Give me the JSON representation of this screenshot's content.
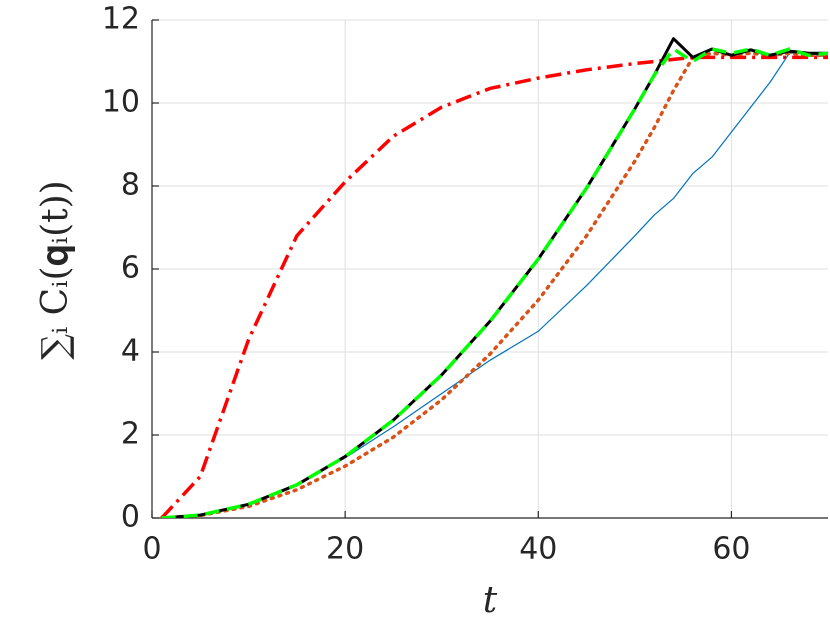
{
  "chart_data": {
    "type": "line",
    "x_label": "t",
    "y_label": "∑ᵢ Cᵢ(𝐪ᵢ(t))",
    "x": [
      1,
      5,
      10,
      15,
      20,
      25,
      30,
      35,
      40,
      45,
      50,
      52,
      54,
      56,
      58,
      60,
      62,
      64,
      66,
      68,
      70
    ],
    "series": [
      {
        "color": "#0072bd",
        "style": "solid",
        "width": 1.2,
        "values": [
          0,
          0.06,
          0.33,
          0.8,
          1.45,
          2.2,
          3.0,
          3.8,
          4.5,
          5.6,
          6.8,
          7.3,
          7.7,
          8.3,
          8.7,
          9.3,
          9.9,
          10.5,
          11.2,
          11.2,
          11.1
        ]
      },
      {
        "color": "#d95319",
        "style": "dotted",
        "width": 3.5,
        "values": [
          0,
          0.06,
          0.28,
          0.68,
          1.25,
          1.95,
          2.85,
          3.95,
          5.25,
          6.8,
          8.6,
          9.4,
          10.3,
          11.1,
          11.2,
          11.15,
          11.2,
          11.15,
          11.2,
          11.15,
          11.15
        ]
      },
      {
        "color": "#ff0000",
        "style": "dashdot",
        "width": 3.5,
        "values": [
          0,
          1.0,
          4.3,
          6.8,
          8.1,
          9.2,
          9.9,
          10.35,
          10.6,
          10.8,
          10.95,
          11.0,
          11.05,
          11.1,
          11.1,
          11.1,
          11.1,
          11.1,
          11.1,
          11.1,
          11.1
        ]
      },
      {
        "color": "#000000",
        "style": "solid",
        "width": 3,
        "values": [
          0,
          0.07,
          0.33,
          0.8,
          1.48,
          2.36,
          3.45,
          4.74,
          6.24,
          7.95,
          9.86,
          10.67,
          11.55,
          11.1,
          11.3,
          11.15,
          11.28,
          11.15,
          11.25,
          11.2,
          11.2
        ]
      },
      {
        "color": "#00ff00",
        "style": "dashed",
        "width": 3.5,
        "values": [
          0,
          0.07,
          0.33,
          0.8,
          1.48,
          2.36,
          3.45,
          4.74,
          6.24,
          7.95,
          9.86,
          10.67,
          11.3,
          11.0,
          11.3,
          11.2,
          11.3,
          11.15,
          11.3,
          11.15,
          11.2
        ]
      }
    ],
    "xlim": [
      0,
      70
    ],
    "ylim": [
      0,
      12
    ],
    "xticks": [
      0,
      20,
      40,
      60
    ],
    "yticks": [
      0,
      2,
      4,
      6,
      8,
      10,
      12
    ],
    "grid": true
  }
}
